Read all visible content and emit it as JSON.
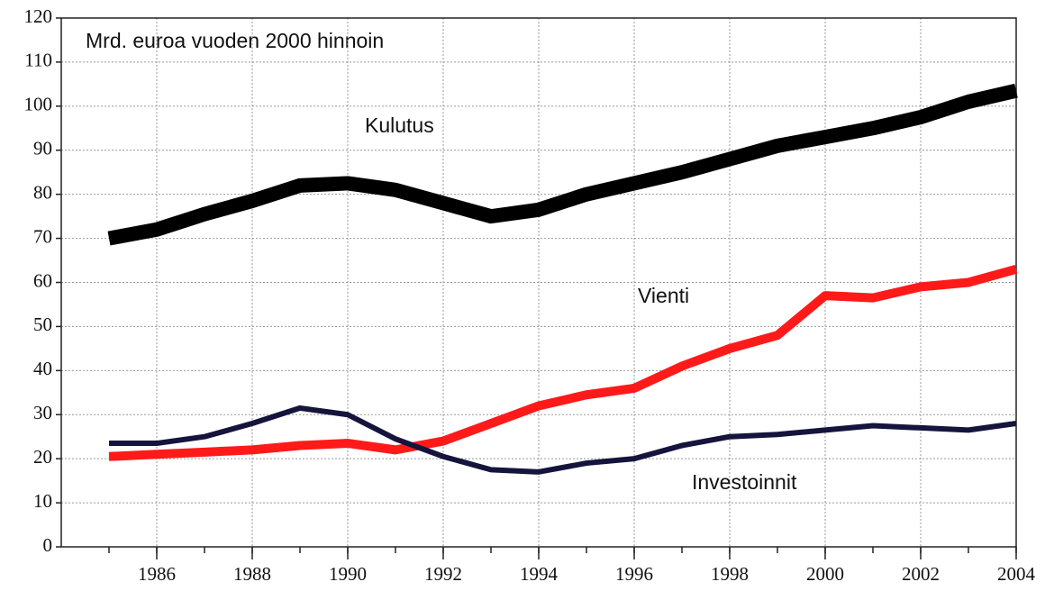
{
  "chart_data": {
    "type": "line",
    "subtitle": "Mrd. euroa vuoden 2000 hinnoin",
    "x": [
      1985,
      1986,
      1987,
      1988,
      1989,
      1990,
      1991,
      1992,
      1993,
      1994,
      1995,
      1996,
      1997,
      1998,
      1999,
      2000,
      2001,
      2002,
      2003,
      2004
    ],
    "series": [
      {
        "name": "Kulutus",
        "color": "#000000",
        "values": [
          70,
          72,
          75.5,
          78.5,
          82,
          82.5,
          81,
          78,
          75,
          76.5,
          80,
          82.5,
          85,
          88,
          91,
          93,
          95,
          97.5,
          101,
          103.5
        ]
      },
      {
        "name": "Vienti",
        "color": "#ff1a1a",
        "values": [
          20.5,
          21,
          21.5,
          22,
          23,
          23.5,
          22,
          24,
          28,
          32,
          34.5,
          36,
          41,
          45,
          48,
          57,
          56.5,
          59,
          60,
          63
        ]
      },
      {
        "name": "Investoinnit",
        "color": "#14143c",
        "values": [
          23.5,
          23.5,
          25,
          28,
          31.5,
          30,
          24.5,
          20.5,
          17.5,
          17,
          19,
          20,
          23,
          25,
          25.5,
          26.5,
          27.5,
          27,
          26.5,
          28
        ]
      }
    ],
    "xlim": [
      1984,
      2004
    ],
    "xticks": [
      1986,
      1988,
      1990,
      1992,
      1994,
      1996,
      1998,
      2000,
      2002,
      2004
    ],
    "ylim": [
      0,
      120
    ],
    "yticks": [
      0,
      10,
      20,
      30,
      40,
      50,
      60,
      70,
      80,
      90,
      100,
      110,
      120
    ],
    "grid": true
  }
}
